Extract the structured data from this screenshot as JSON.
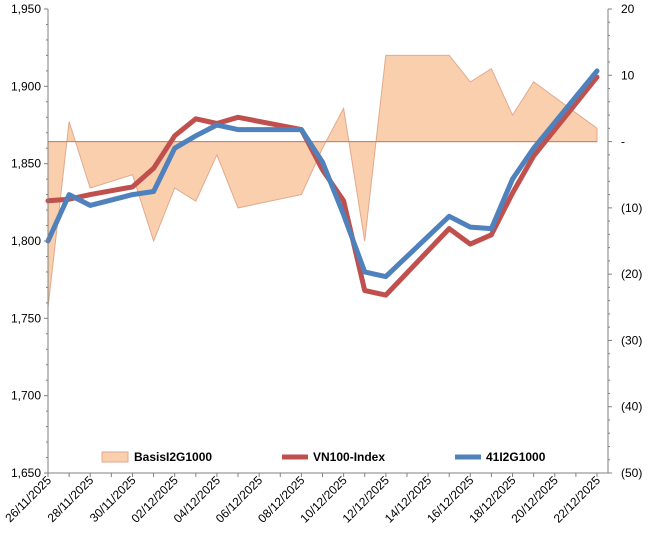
{
  "chart_data": {
    "type": "line",
    "title": "",
    "left_axis": {
      "min": 1650,
      "max": 1950,
      "step": 50,
      "tick_labels": [
        "1,650",
        "1,700",
        "1,750",
        "1,800",
        "1,850",
        "1,900",
        "1,950"
      ]
    },
    "right_axis": {
      "min": -50,
      "max": 20,
      "step": 10,
      "tick_labels": [
        "(50)",
        "(40)",
        "(30)",
        "(20)",
        "(10)",
        "-",
        "10",
        "20"
      ]
    },
    "x_axis": {
      "tick_labels": [
        "26/11/2025",
        "28/11/2025",
        "30/11/2025",
        "02/12/2025",
        "04/12/2025",
        "06/12/2025",
        "08/12/2025",
        "10/12/2025",
        "12/12/2025",
        "14/12/2025",
        "16/12/2025",
        "18/12/2025",
        "20/12/2025",
        "22/12/2025"
      ]
    },
    "x": [
      0,
      1,
      2,
      4,
      5,
      6,
      7,
      8,
      9,
      12,
      13,
      14,
      15,
      16,
      19,
      20,
      21,
      22,
      23,
      26
    ],
    "x_max": 26,
    "series": [
      {
        "name": "BasisI2G1000",
        "kind": "area",
        "axis": "right",
        "color_fill": "#f9cfae",
        "color_stroke": "#e2a98c",
        "values": [
          -25,
          3,
          -7,
          -5,
          -15,
          -7,
          -9,
          -2,
          -10,
          -8,
          -1,
          5,
          -15,
          13,
          13,
          9,
          11,
          4,
          9,
          2
        ]
      },
      {
        "name": "VN100-Index",
        "kind": "line",
        "axis": "left",
        "color": "#c0504d",
        "values": [
          1826,
          1827,
          1830,
          1835,
          1847,
          1868,
          1879,
          1876,
          1880,
          1872,
          1846,
          1826,
          1768,
          1765,
          1808,
          1798,
          1804,
          1831,
          1855,
          1906
        ]
      },
      {
        "name": "41I2G1000",
        "kind": "line",
        "axis": "left",
        "color": "#4f81bd",
        "values": [
          1800,
          1830,
          1823,
          1830,
          1832,
          1860,
          1868,
          1875,
          1872,
          1872,
          1851,
          1817,
          1780,
          1777,
          1816,
          1809,
          1808,
          1840,
          1860,
          1910
        ]
      }
    ],
    "legend": {
      "position": "bottom",
      "entries": [
        "BasisI2G1000",
        "VN100-Index",
        "41I2G1000"
      ]
    },
    "grid": false
  }
}
